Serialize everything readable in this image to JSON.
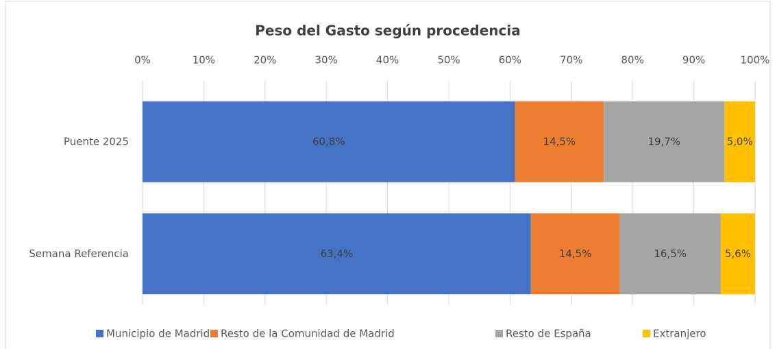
{
  "chart_data": {
    "type": "stacked-bar-horizontal",
    "title": "Peso del Gasto según procedencia",
    "categories": [
      "Puente 2025",
      "Semana Referencia"
    ],
    "series": [
      {
        "name": "Municipio de Madrid",
        "color": "#4472c4",
        "values": [
          60.8,
          63.4
        ],
        "value_labels": [
          "60,8%",
          "63,4%"
        ]
      },
      {
        "name": "Resto de la Comunidad de Madrid",
        "color": "#ed7d31",
        "values": [
          14.5,
          14.5
        ],
        "value_labels": [
          "14,5%",
          "14,5%"
        ]
      },
      {
        "name": "Resto de España",
        "color": "#a5a5a5",
        "values": [
          19.7,
          16.5
        ],
        "value_labels": [
          "19,7%",
          "16,5%"
        ]
      },
      {
        "name": "Extranjero",
        "color": "#ffc000",
        "values": [
          5.0,
          5.6
        ],
        "value_labels": [
          "5,0%",
          "5,6%"
        ]
      }
    ],
    "xlim": [
      0,
      100
    ],
    "xticks": [
      {
        "value": 0,
        "label": "0%"
      },
      {
        "value": 10,
        "label": "10%"
      },
      {
        "value": 20,
        "label": "20%"
      },
      {
        "value": 30,
        "label": "30%"
      },
      {
        "value": 40,
        "label": "40%"
      },
      {
        "value": 50,
        "label": "50%"
      },
      {
        "value": 60,
        "label": "60%"
      },
      {
        "value": 70,
        "label": "70%"
      },
      {
        "value": 80,
        "label": "80%"
      },
      {
        "value": 90,
        "label": "90%"
      },
      {
        "value": 100,
        "label": "100%"
      }
    ],
    "grid": true,
    "legend": "bottom"
  }
}
